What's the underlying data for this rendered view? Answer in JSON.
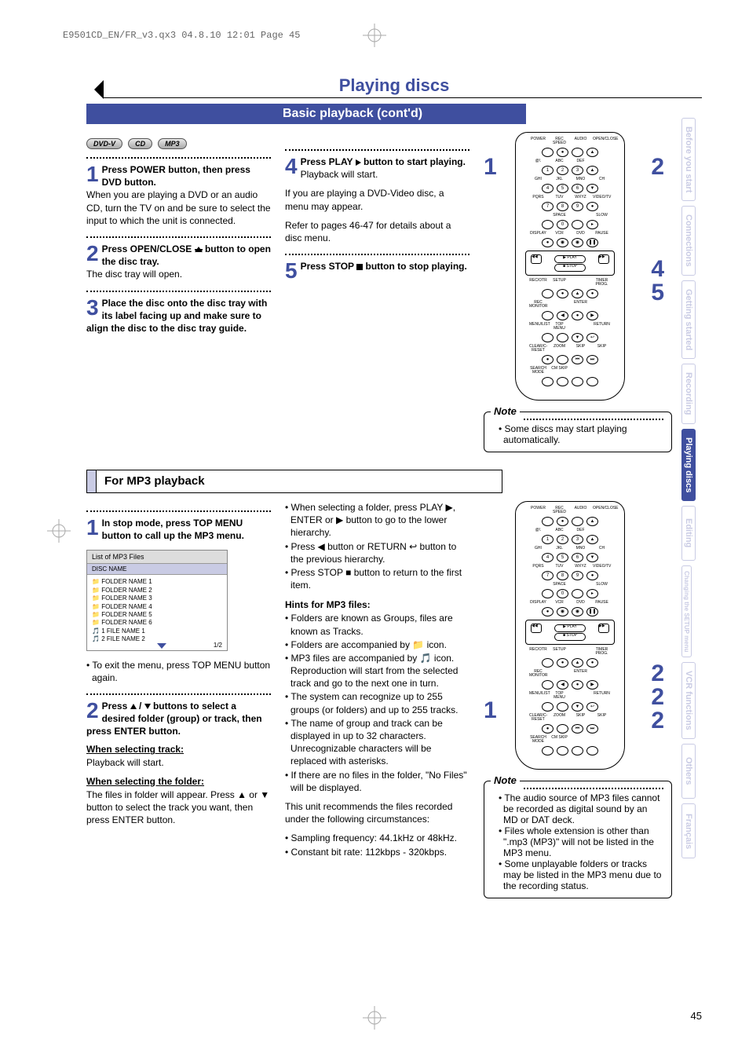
{
  "meta": {
    "header_print": "E9501CD_EN/FR_v3.qx3  04.8.10  12:01  Page 45",
    "page_number": "45"
  },
  "colors": {
    "accent": "#3f4f9f",
    "tab_inactive": "#c9cbe4",
    "bg": "#ffffff",
    "text": "#000000"
  },
  "title": {
    "main": "Playing discs",
    "sub": "Basic playback (cont'd)"
  },
  "badges": [
    "DVD-V",
    "CD",
    "MP3"
  ],
  "steps_top": {
    "s1": {
      "num": "1",
      "bold": "Press POWER button, then press DVD button.",
      "body": "When you are playing a DVD or an audio CD, turn the TV on and be sure to select the input to which the unit is connected."
    },
    "s2": {
      "num": "2",
      "bold": "Press OPEN/CLOSE ",
      "bold2": " button to open the disc tray.",
      "body": "The disc tray will open."
    },
    "s3": {
      "num": "3",
      "bold": "Place the disc onto the disc tray with its label facing up and make sure to align the disc to the disc tray guide."
    },
    "s4": {
      "num": "4",
      "bold": "Press PLAY ",
      "bold2": " button to start playing.",
      "body1": "Playback will start.",
      "body2": "If you are playing a DVD-Video disc, a menu may appear.",
      "body3": "Refer to pages 46-47 for details about a disc menu."
    },
    "s5": {
      "num": "5",
      "bold": "Press STOP ",
      "bold2": " button to stop playing."
    }
  },
  "remote_callouts_top": {
    "c1": "1",
    "c2": "2",
    "c4": "4",
    "c5": "5"
  },
  "note_top": {
    "title": "Note",
    "items": [
      "Some discs may start playing automatically."
    ]
  },
  "section_mp3": {
    "header": "For MP3 playback"
  },
  "mp3_col1": {
    "s1": {
      "num": "1",
      "bold": "In stop mode, press TOP MENU button to call up the MP3 menu."
    },
    "list": {
      "title": "List of MP3 Files",
      "disc": "DISC NAME",
      "items": [
        "FOLDER NAME 1",
        "FOLDER NAME 2",
        "FOLDER NAME 3",
        "FOLDER NAME 4",
        "FOLDER NAME 5",
        "FOLDER NAME 6",
        "1   FILE NAME 1",
        "2   FILE NAME 2"
      ],
      "page": "1/2"
    },
    "after_list": "• To exit the menu, press TOP MENU button again.",
    "s2": {
      "num": "2",
      "bold_a": "Press ",
      "bold_b": " / ",
      "bold_c": " buttons to select a desired folder (group) or track, then press ENTER button."
    },
    "sel_track_head": "When selecting track:",
    "sel_track_body": "Playback will start.",
    "sel_folder_head": "When selecting the folder:",
    "sel_folder_body": "The files in folder will appear. Press ▲ or ▼ button to select the track you want, then press ENTER button."
  },
  "mp3_col2": {
    "items_a": [
      "When selecting a folder, press PLAY ▶, ENTER or ▶ button to go to the lower hierarchy.",
      "Press ◀ button or RETURN ↩ button to the previous hierarchy.",
      "Press STOP ■ button to return to the first item."
    ],
    "hints_head": "Hints for MP3 files:",
    "hints": [
      "Folders are known as Groups, files are known as Tracks.",
      "Folders are accompanied by 📁 icon.",
      "MP3 files are accompanied by 🎵 icon. Reproduction will start from the selected track and go to the next one in turn.",
      "The system can recognize up to 255 groups (or folders) and up to 255 tracks.",
      "The name of group and track can be displayed in up to 32 characters. Unrecognizable characters will be replaced with asterisks.",
      "If there are no files in the folder, \"No Files\" will be displayed."
    ],
    "rec_head": "This unit recommends the files recorded under the following circumstances:",
    "rec": [
      "Sampling frequency: 44.1kHz or 48kHz.",
      "Constant bit rate: 112kbps - 320kbps."
    ]
  },
  "remote_callouts_bot": {
    "c1": "1",
    "c2a": "2",
    "c2b": "2",
    "c2c": "2"
  },
  "note_bot": {
    "title": "Note",
    "items": [
      "The audio source of MP3 files cannot be recorded as digital sound by an MD or DAT deck.",
      "Files whole extension is other than \".mp3 (MP3)\" will not be listed in the MP3 menu.",
      "Some unplayable folders or tracks may be listed in the MP3 menu due to the recording status."
    ]
  },
  "sidetabs": [
    {
      "label": "Before you start",
      "active": false
    },
    {
      "label": "Connections",
      "active": false
    },
    {
      "label": "Getting started",
      "active": false
    },
    {
      "label": "Recording",
      "active": false
    },
    {
      "label": "Playing discs",
      "active": true
    },
    {
      "label": "Editing",
      "active": false
    },
    {
      "label": "Changing the SETUP menu",
      "active": false,
      "small": true
    },
    {
      "label": "VCR functions",
      "active": false
    },
    {
      "label": "Others",
      "active": false
    },
    {
      "label": "Français",
      "active": false
    }
  ],
  "remote_labels": {
    "row1": [
      "POWER",
      "REC SPEED",
      "AUDIO",
      "OPEN/CLOSE"
    ],
    "row2": [
      "@!.",
      "ABC",
      "DEF"
    ],
    "row2n": [
      "1",
      "2",
      "3"
    ],
    "row3": [
      "GHI",
      "JKL",
      "MNO",
      "CH"
    ],
    "row3n": [
      "4",
      "5",
      "6"
    ],
    "row4": [
      "PQRS",
      "TUV",
      "WXYZ",
      "VIDEO/TV"
    ],
    "row4n": [
      "7",
      "8",
      "9"
    ],
    "row5": [
      "",
      "SPACE",
      "",
      "SLOW"
    ],
    "row5n": [
      "",
      "0",
      "",
      ""
    ],
    "row6": [
      "DISPLAY",
      "VCR",
      "DVD",
      "PAUSE"
    ],
    "play": "PLAY",
    "stop": "STOP",
    "row7": [
      "REC/OTR",
      "SETUP",
      "",
      "TIMER PROG."
    ],
    "row8": [
      "REC MONITOR",
      "",
      "ENTER",
      ""
    ],
    "row9": [
      "MENU/LIST",
      "TOP MENU",
      "",
      "RETURN"
    ],
    "row10": [
      "CLEAR/C-RESET",
      "ZOOM",
      "SKIP",
      "SKIP"
    ],
    "row11": [
      "SEARCH MODE",
      "CM SKIP",
      "",
      ""
    ]
  }
}
